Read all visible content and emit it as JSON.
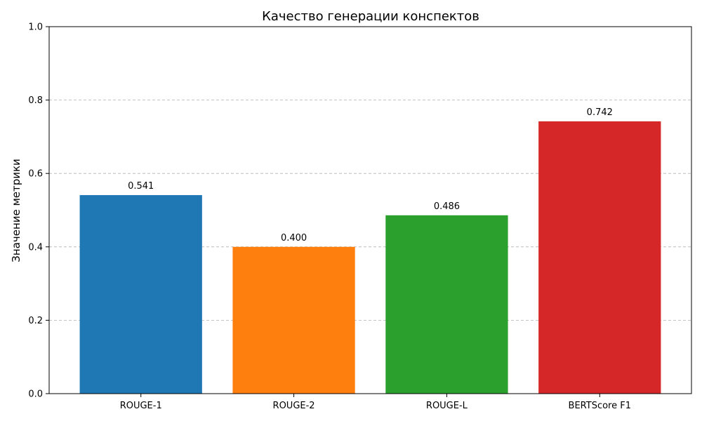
{
  "chart_data": {
    "type": "bar",
    "title": "Качество генерации конспектов",
    "xlabel": "",
    "ylabel": "Значение метрики",
    "ylim": [
      0,
      1.0
    ],
    "yticks": [
      "0.0",
      "0.2",
      "0.4",
      "0.6",
      "0.8",
      "1.0"
    ],
    "ytick_values": [
      0.0,
      0.2,
      0.4,
      0.6,
      0.8,
      1.0
    ],
    "grid": "y-dashed",
    "categories": [
      "ROUGE-1",
      "ROUGE-2",
      "ROUGE-L",
      "BERTScore F1"
    ],
    "values": [
      0.541,
      0.4,
      0.486,
      0.742
    ],
    "value_labels": [
      "0.541",
      "0.400",
      "0.486",
      "0.742"
    ],
    "colors": [
      "#1f77b4",
      "#ff7f0e",
      "#2ca02c",
      "#d62728"
    ]
  }
}
